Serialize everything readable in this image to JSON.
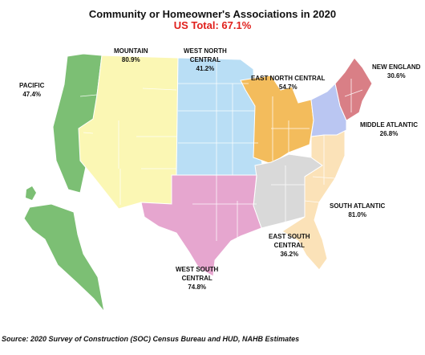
{
  "title": "Community or Homeowner's Associations in 2020",
  "subtitle": "US Total: 67.1%",
  "subtitle_color": "#e0201c",
  "regions": [
    {
      "key": "pacific",
      "name": "PACIFIC",
      "value": "47.4%",
      "color": "#7cbf74"
    },
    {
      "key": "mountain",
      "name": "MOUNTAIN",
      "value": "80.9%",
      "color": "#fbf7b4"
    },
    {
      "key": "wnc",
      "name": "WEST NORTH CENTRAL",
      "value": "41.2%",
      "color": "#b9def5"
    },
    {
      "key": "enc",
      "name": "EAST NORTH CENTRAL",
      "value": "54.7%",
      "color": "#f3bc5c"
    },
    {
      "key": "ne",
      "name": "NEW ENGLAND",
      "value": "30.6%",
      "color": "#d97f86"
    },
    {
      "key": "ma",
      "name": "MIDDLE ATLANTIC",
      "value": "26.8%",
      "color": "#bac6f2"
    },
    {
      "key": "sa",
      "name": "SOUTH ATLANTIC",
      "value": "81.0%",
      "color": "#fbe2b8"
    },
    {
      "key": "esc",
      "name": "EAST SOUTH CENTRAL",
      "value": "36.2%",
      "color": "#d9d9d9"
    },
    {
      "key": "wsc",
      "name": "WEST SOUTH CENTRAL",
      "value": "74.8%",
      "color": "#e6a6cf"
    }
  ],
  "labels": {
    "pacific": {
      "line1": "PACIFIC",
      "line2": "",
      "value": "47.4%"
    },
    "mountain": {
      "line1": "MOUNTAIN",
      "line2": "",
      "value": "80.9%"
    },
    "wnc": {
      "line1": "WEST NORTH",
      "line2": "CENTRAL",
      "value": "41.2%"
    },
    "enc": {
      "line1": "EAST NORTH CENTRAL",
      "line2": "",
      "value": "54.7%"
    },
    "ne": {
      "line1": "NEW ENGLAND",
      "line2": "",
      "value": "30.6%"
    },
    "ma": {
      "line1": "MIDDLE ATLANTIC",
      "line2": "",
      "value": "26.8%"
    },
    "sa": {
      "line1": "SOUTH ATLANTIC",
      "line2": "",
      "value": "81.0%"
    },
    "esc": {
      "line1": "EAST SOUTH",
      "line2": "CENTRAL",
      "value": "36.2%"
    },
    "wsc": {
      "line1": "WEST SOUTH",
      "line2": "CENTRAL",
      "value": "74.8%"
    }
  },
  "source": "Source: 2020 Survey of Construction (SOC) Census Bureau and HUD, NAHB Estimates"
}
